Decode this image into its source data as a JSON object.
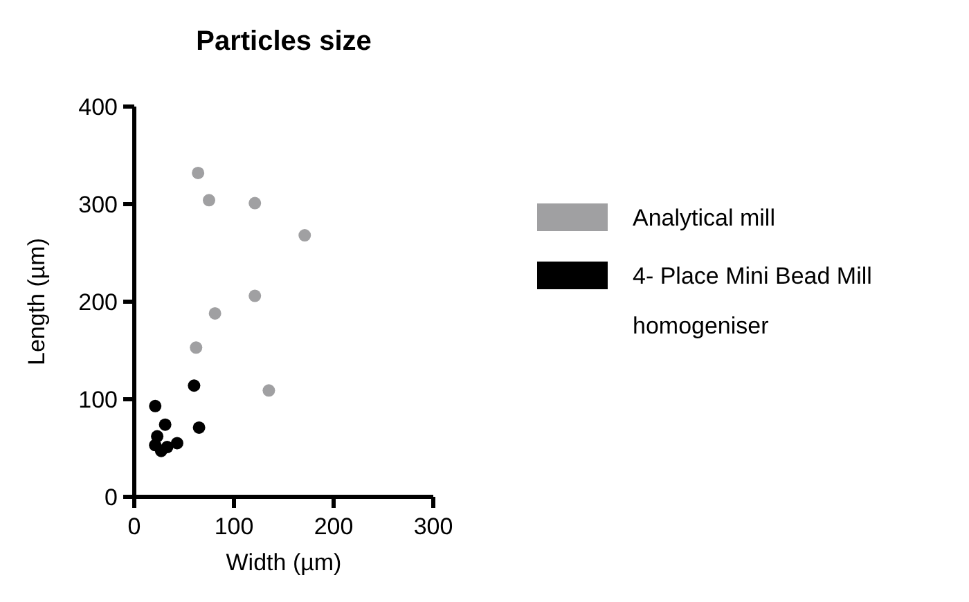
{
  "chart_data": {
    "type": "scatter",
    "title": "Particles size",
    "xlabel": "Width (µm)",
    "ylabel": "Length (µm)",
    "xlim": [
      0,
      300
    ],
    "xticks": [
      0,
      100,
      200,
      300
    ],
    "ylim": [
      0,
      400
    ],
    "yticks": [
      0,
      100,
      200,
      300,
      400
    ],
    "grid": false,
    "legend": "right",
    "marker": "circle",
    "series": [
      {
        "name": "Analytical mill",
        "color": "#a0a0a2",
        "x": [
          64,
          75,
          121,
          171,
          121,
          81,
          62,
          135
        ],
        "values": [
          332,
          304,
          301,
          268,
          206,
          188,
          153,
          109
        ]
      },
      {
        "name": "4- Place Mini Bead Mill homogeniser",
        "color": "#000000",
        "x": [
          21,
          60,
          31,
          65,
          23,
          21,
          27,
          33,
          43
        ],
        "values": [
          93,
          114,
          74,
          71,
          62,
          53,
          47,
          51,
          55
        ]
      }
    ]
  }
}
